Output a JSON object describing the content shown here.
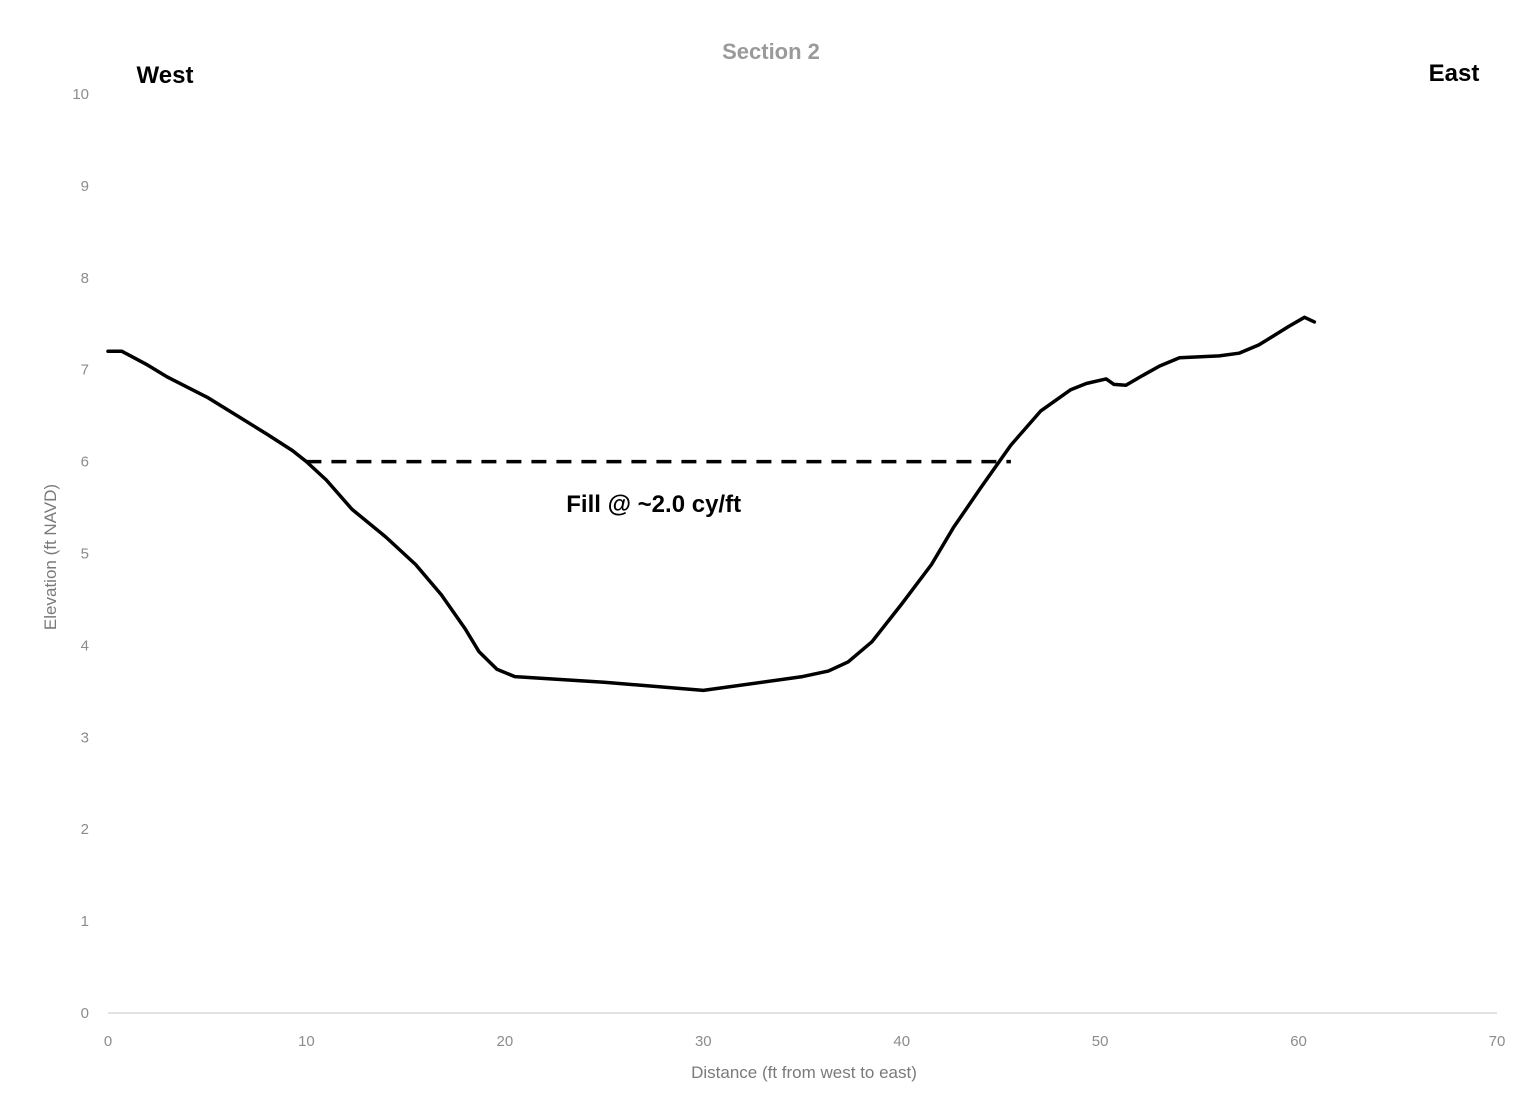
{
  "chart_data": {
    "type": "line",
    "title": "Section 2",
    "xlabel": "Distance (ft from west to east)",
    "ylabel": "Elevation (ft NAVD)",
    "xlim": [
      0,
      70
    ],
    "ylim": [
      0,
      10
    ],
    "x_ticks": [
      0,
      10,
      20,
      30,
      40,
      50,
      60,
      70
    ],
    "y_ticks": [
      0,
      1,
      2,
      3,
      4,
      5,
      6,
      7,
      8,
      9,
      10
    ],
    "grid": false,
    "side_labels": {
      "west": "West",
      "east": "East"
    },
    "series": [
      {
        "style": "solid",
        "color": "#000000",
        "x": [
          0,
          0.7,
          2,
          3,
          5,
          6.5,
          8,
          9.3,
          10,
          11,
          12.3,
          14,
          15.5,
          16.8,
          18,
          18.7,
          19.6,
          20.5,
          25,
          30,
          35,
          36.3,
          37.3,
          38.5,
          40,
          41.5,
          42.6,
          44,
          45.5,
          47,
          48.5,
          49.3,
          50.3,
          50.7,
          51.3,
          52,
          53,
          54,
          56,
          57,
          58,
          59.5,
          60.3,
          60.8
        ],
        "y": [
          7.2,
          7.2,
          7.05,
          6.92,
          6.7,
          6.5,
          6.3,
          6.12,
          6.0,
          5.8,
          5.48,
          5.18,
          4.88,
          4.55,
          4.18,
          3.93,
          3.74,
          3.66,
          3.6,
          3.51,
          3.66,
          3.72,
          3.82,
          4.04,
          4.45,
          4.88,
          5.28,
          5.72,
          6.18,
          6.55,
          6.78,
          6.85,
          6.9,
          6.84,
          6.83,
          6.92,
          7.04,
          7.13,
          7.15,
          7.18,
          7.27,
          7.47,
          7.57,
          7.52
        ]
      },
      {
        "style": "dashed",
        "color": "#000000",
        "x": [
          10,
          45.5
        ],
        "y": [
          6.0,
          6.0
        ]
      }
    ],
    "annotations": [
      {
        "text": "Fill @ ~2.0 cy/ft",
        "x": 27.5,
        "y": 5.45
      }
    ]
  }
}
